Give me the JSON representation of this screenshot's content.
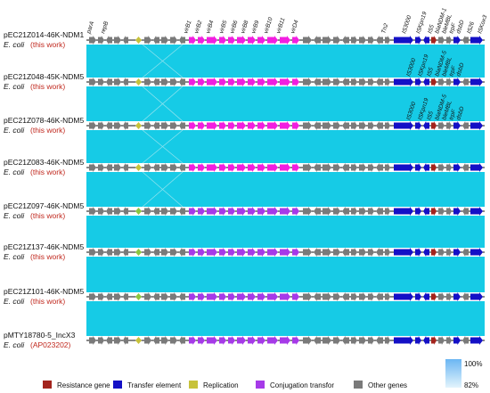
{
  "colors": {
    "identity_band": "#16cbe6",
    "resistance": "#a3241d",
    "transfer": "#1410c6",
    "replication": "#c7c23a",
    "conjugation": "#a63ae8",
    "conjugation_bright": "#f21ee0",
    "other": "#7a7a7a",
    "backbone": "#111111"
  },
  "plasmids": [
    {
      "name": "pEC21Z014-46K-NDM1",
      "host": "E. coli",
      "note": "(this work)"
    },
    {
      "name": "pEC21Z048-45K-NDM5",
      "host": "E. coli",
      "note": "(this work)"
    },
    {
      "name": "pEC21Z078-46K-NDM5",
      "host": "E. coli",
      "note": "(this work)"
    },
    {
      "name": "pEC21Z083-46K-NDM5",
      "host": "E. coli",
      "note": "(this work)"
    },
    {
      "name": "pEC21Z097-46K-NDM5",
      "host": "E. coli",
      "note": "(this work)"
    },
    {
      "name": "pEC21Z137-46K-NDM5",
      "host": "E. coli",
      "note": "(this work)"
    },
    {
      "name": "pEC21Z101-46K-NDM5",
      "host": "E. coli",
      "note": "(this work)"
    },
    {
      "name": "pMTY18780-5_IncX3",
      "host": "E. coli",
      "note": "(AP023202)"
    }
  ],
  "top_gene_labels": [
    "parA",
    "repB",
    "virB1",
    "virB2",
    "virB4",
    "virB5",
    "virB6",
    "virB8",
    "virB9",
    "virB10",
    "virB11",
    "virD4",
    "Tn2",
    "IS3000",
    "ISKpn19",
    "IS5",
    "blaNDM-1",
    "bleMBL",
    "trpF",
    "dsbD",
    "IS26",
    "ISKox3"
  ],
  "row2_labels": [
    "IS3000",
    "ISKpn19",
    "IS5",
    "blaNDM-5",
    "bleMBL",
    "trpF",
    "dsbD"
  ],
  "row3_labels": [
    "IS3000",
    "ISKpn19",
    "IS5",
    "blaNDM-5",
    "bleMBL",
    "trpF",
    "dsbD"
  ],
  "legend": [
    {
      "label": "Resistance gene",
      "color": "#a3241d"
    },
    {
      "label": "Transfer element",
      "color": "#1410c6"
    },
    {
      "label": "Replication",
      "color": "#c7c23a"
    },
    {
      "label": "Conjugation transfor",
      "color": "#a63ae8"
    },
    {
      "label": "Other genes",
      "color": "#7a7a7a"
    }
  ],
  "identity_scale": {
    "max": "100%",
    "min": "82%"
  }
}
